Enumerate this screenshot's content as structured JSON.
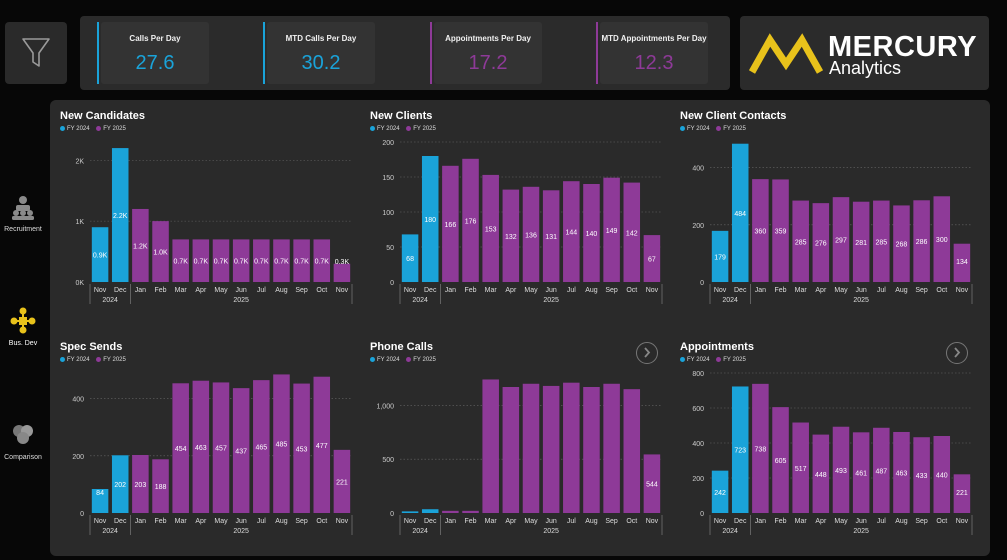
{
  "kpis": [
    {
      "label": "Calls Per Day",
      "value": "27.6",
      "color": "#1aa3d9"
    },
    {
      "label": "MTD Calls Per Day",
      "value": "30.2",
      "color": "#1aa3d9"
    },
    {
      "label": "Appointments Per Day",
      "value": "17.2",
      "color": "#8e3a98"
    },
    {
      "label": "MTD Appointments Per Day",
      "value": "12.3",
      "color": "#8e3a98"
    }
  ],
  "brand": {
    "name": "MERCURY",
    "sub": "Analytics",
    "accent": "#e8c21b"
  },
  "nav": [
    {
      "label": "Recruitment",
      "icon": "recruitment-icon",
      "active": false
    },
    {
      "label": "Bus. Dev",
      "icon": "business-dev-icon",
      "active": true
    },
    {
      "label": "Comparison",
      "icon": "comparison-icon",
      "active": false
    }
  ],
  "legend": {
    "fy2024": "FY 2024",
    "fy2025": "FY 2025",
    "color2024": "#1aa3d9",
    "color2025": "#8e3a98"
  },
  "chart_data": [
    {
      "id": "new-candidates",
      "type": "bar",
      "title": "New Candidates",
      "categories": [
        "Nov",
        "Dec",
        "Jan",
        "Feb",
        "Mar",
        "Apr",
        "May",
        "Jun",
        "Jul",
        "Aug",
        "Sep",
        "Oct",
        "Nov"
      ],
      "years": [
        {
          "label": "2024",
          "from": 0,
          "to": 1
        },
        {
          "label": "2025",
          "from": 2,
          "to": 12
        }
      ],
      "values": [
        900,
        2200,
        1200,
        1000,
        700,
        700,
        700,
        700,
        700,
        700,
        700,
        700,
        300
      ],
      "data_labels": [
        "0.9K",
        "2.2K",
        "1.2K",
        "1.0K",
        "0.7K",
        "0.7K",
        "0.7K",
        "0.7K",
        "0.7K",
        "0.7K",
        "0.7K",
        "0.7K",
        "0.3K"
      ],
      "fy": [
        2024,
        2024,
        2025,
        2025,
        2025,
        2025,
        2025,
        2025,
        2025,
        2025,
        2025,
        2025,
        2025
      ],
      "y_ticks": [
        0,
        1000,
        2000
      ],
      "y_tick_labels": [
        "0K",
        "1K",
        "2K"
      ],
      "ylim": [
        0,
        2300
      ]
    },
    {
      "id": "new-clients",
      "type": "bar",
      "title": "New Clients",
      "categories": [
        "Nov",
        "Dec",
        "Jan",
        "Feb",
        "Mar",
        "Apr",
        "May",
        "Jun",
        "Jul",
        "Aug",
        "Sep",
        "Oct",
        "Nov"
      ],
      "years": [
        {
          "label": "2024",
          "from": 0,
          "to": 1
        },
        {
          "label": "2025",
          "from": 2,
          "to": 12
        }
      ],
      "values": [
        68,
        180,
        166,
        176,
        153,
        132,
        136,
        131,
        144,
        140,
        149,
        142,
        67
      ],
      "data_labels": [
        "68",
        "180",
        "166",
        "176",
        "153",
        "132",
        "136",
        "131",
        "144",
        "140",
        "149",
        "142",
        "67"
      ],
      "fy": [
        2024,
        2024,
        2025,
        2025,
        2025,
        2025,
        2025,
        2025,
        2025,
        2025,
        2025,
        2025,
        2025
      ],
      "y_ticks": [
        0,
        50,
        100,
        150,
        200
      ],
      "y_tick_labels": [
        "0",
        "50",
        "100",
        "150",
        "200"
      ],
      "ylim": [
        0,
        200
      ]
    },
    {
      "id": "new-client-contacts",
      "type": "bar",
      "title": "New Client Contacts",
      "categories": [
        "Nov",
        "Dec",
        "Jan",
        "Feb",
        "Mar",
        "Apr",
        "May",
        "Jun",
        "Jul",
        "Aug",
        "Sep",
        "Oct",
        "Nov"
      ],
      "years": [
        {
          "label": "2024",
          "from": 0,
          "to": 1
        },
        {
          "label": "2025",
          "from": 2,
          "to": 12
        }
      ],
      "values": [
        179,
        484,
        360,
        359,
        285,
        276,
        297,
        281,
        285,
        268,
        286,
        300,
        134
      ],
      "data_labels": [
        "179",
        "484",
        "360",
        "359",
        "285",
        "276",
        "297",
        "281",
        "285",
        "268",
        "286",
        "300",
        "134"
      ],
      "fy": [
        2024,
        2024,
        2025,
        2025,
        2025,
        2025,
        2025,
        2025,
        2025,
        2025,
        2025,
        2025,
        2025
      ],
      "y_ticks": [
        0,
        200,
        400
      ],
      "y_tick_labels": [
        "0",
        "200",
        "400"
      ],
      "ylim": [
        0,
        490
      ]
    },
    {
      "id": "spec-sends",
      "type": "bar",
      "title": "Spec Sends",
      "categories": [
        "Nov",
        "Dec",
        "Jan",
        "Feb",
        "Mar",
        "Apr",
        "May",
        "Jun",
        "Jul",
        "Aug",
        "Sep",
        "Oct",
        "Nov"
      ],
      "years": [
        {
          "label": "2024",
          "from": 0,
          "to": 1
        },
        {
          "label": "2025",
          "from": 2,
          "to": 12
        }
      ],
      "values": [
        84,
        202,
        203,
        188,
        454,
        463,
        457,
        437,
        465,
        485,
        453,
        477,
        221
      ],
      "data_labels": [
        "84",
        "202",
        "203",
        "188",
        "454",
        "463",
        "457",
        "437",
        "465",
        "485",
        "453",
        "477",
        "221"
      ],
      "fy": [
        2024,
        2024,
        2025,
        2025,
        2025,
        2025,
        2025,
        2025,
        2025,
        2025,
        2025,
        2025,
        2025
      ],
      "y_ticks": [
        0,
        200,
        400
      ],
      "y_tick_labels": [
        "0",
        "200",
        "400"
      ],
      "ylim": [
        0,
        490
      ]
    },
    {
      "id": "phone-calls",
      "type": "bar",
      "title": "Phone Calls",
      "categories": [
        "Nov",
        "Dec",
        "Jan",
        "Feb",
        "Mar",
        "Apr",
        "May",
        "Jun",
        "Jul",
        "Aug",
        "Sep",
        "Oct",
        "Nov"
      ],
      "years": [
        {
          "label": "2024",
          "from": 0,
          "to": 1
        },
        {
          "label": "2025",
          "from": 2,
          "to": 12
        }
      ],
      "values": [
        15,
        35,
        20,
        20,
        1240,
        1170,
        1200,
        1180,
        1210,
        1170,
        1200,
        1150,
        544
      ],
      "data_labels": [
        "",
        "",
        "",
        "",
        "",
        "",
        "",
        "",
        "",
        "",
        "",
        "",
        "544"
      ],
      "fy": [
        2024,
        2024,
        2025,
        2025,
        2025,
        2025,
        2025,
        2025,
        2025,
        2025,
        2025,
        2025,
        2025
      ],
      "y_ticks": [
        0,
        500,
        1000
      ],
      "y_tick_labels": [
        "0",
        "500",
        "1,000"
      ],
      "ylim": [
        0,
        1300
      ]
    },
    {
      "id": "appointments",
      "type": "bar",
      "title": "Appointments",
      "categories": [
        "Nov",
        "Dec",
        "Jan",
        "Feb",
        "Mar",
        "Apr",
        "May",
        "Jun",
        "Jul",
        "Aug",
        "Sep",
        "Oct",
        "Nov"
      ],
      "years": [
        {
          "label": "2024",
          "from": 0,
          "to": 1
        },
        {
          "label": "2025",
          "from": 2,
          "to": 12
        }
      ],
      "values": [
        242,
        723,
        738,
        605,
        517,
        448,
        493,
        461,
        487,
        463,
        433,
        440,
        221
      ],
      "data_labels": [
        "242",
        "723",
        "738",
        "605",
        "517",
        "448",
        "493",
        "461",
        "487",
        "463",
        "433",
        "440",
        "221"
      ],
      "fy": [
        2024,
        2024,
        2025,
        2025,
        2025,
        2025,
        2025,
        2025,
        2025,
        2025,
        2025,
        2025,
        2025
      ],
      "y_ticks": [
        0,
        200,
        400,
        600,
        800
      ],
      "y_tick_labels": [
        "0",
        "200",
        "400",
        "600",
        "800"
      ],
      "ylim": [
        0,
        800
      ]
    }
  ]
}
